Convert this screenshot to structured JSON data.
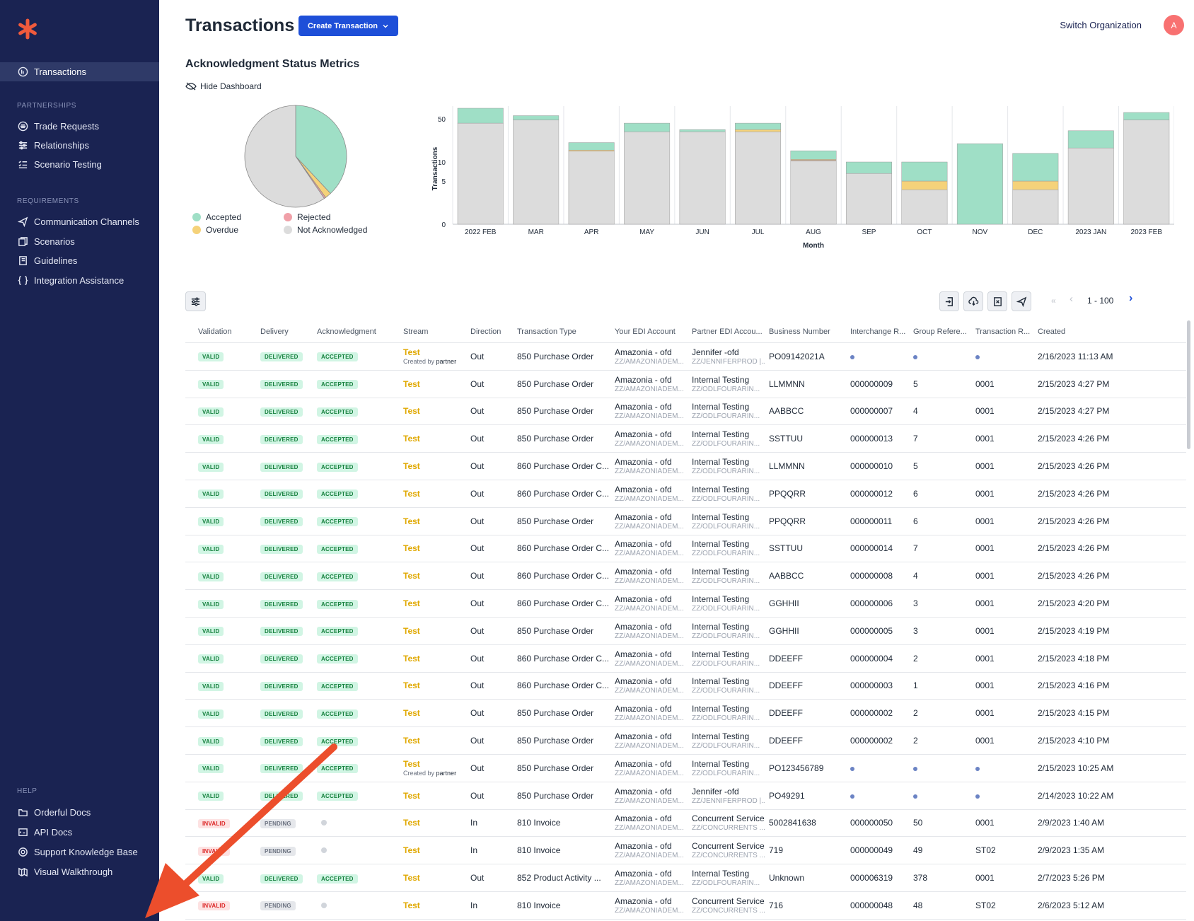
{
  "sidebar": {
    "active": "Transactions",
    "sections": {
      "partnerships": "PARTNERSHIPS",
      "requirements": "REQUIREMENTS",
      "help": "HELP"
    },
    "partnerships": [
      "Trade Requests",
      "Relationships",
      "Scenario Testing"
    ],
    "requirements": [
      "Communication Channels",
      "Scenarios",
      "Guidelines",
      "Integration Assistance"
    ],
    "help": [
      "Orderful Docs",
      "API Docs",
      "Support Knowledge Base",
      "Visual Walkthrough"
    ]
  },
  "header": {
    "title": "Transactions",
    "create_label": "Create Transaction",
    "switch_org": "Switch Organization",
    "avatar": "A"
  },
  "dashboard": {
    "title": "Acknowledgment Status Metrics",
    "hide_label": "Hide Dashboard",
    "legend": {
      "accepted": "Accepted",
      "rejected": "Rejected",
      "overdue": "Overdue",
      "not_ack": "Not Acknowledged"
    }
  },
  "colors": {
    "accepted": "#9fdfc6",
    "rejected": "#f0a0a8",
    "overdue": "#f5d27a",
    "not_ack": "#dcdcdc",
    "accent": "#1e4fd8"
  },
  "chart_data": [
    {
      "type": "pie",
      "slices": [
        {
          "name": "Accepted",
          "value": 38
        },
        {
          "name": "Overdue",
          "value": 2
        },
        {
          "name": "Rejected",
          "value": 0.5
        },
        {
          "name": "Not Acknowledged",
          "value": 59.5
        }
      ]
    },
    {
      "type": "bar",
      "stacked": true,
      "xlabel": "Month",
      "ylabel": "Transactions",
      "yticks": [
        "0",
        "5",
        "10",
        "50"
      ],
      "categories": [
        "2022 FEB",
        "MAR",
        "APR",
        "MAY",
        "JUN",
        "JUL",
        "AUG",
        "SEP",
        "OCT",
        "NOV",
        "DEC",
        "2023 JAN",
        "2023 FEB"
      ],
      "series": [
        {
          "name": "Not Acknowledged",
          "values": [
            46,
            49,
            20,
            38,
            38,
            38,
            11,
            7,
            4,
            0,
            4,
            23,
            49
          ]
        },
        {
          "name": "Rejected",
          "values": [
            0,
            0,
            0,
            0,
            0,
            0,
            0.6,
            0,
            0,
            0,
            0,
            0,
            0
          ]
        },
        {
          "name": "Overdue",
          "values": [
            0,
            0,
            1,
            0,
            0,
            2,
            0.8,
            0,
            1,
            0,
            1,
            0,
            0
          ]
        },
        {
          "name": "Accepted",
          "values": [
            14,
            4,
            7,
            8,
            2,
            6,
            8,
            3,
            5,
            27,
            13,
            16,
            7
          ]
        }
      ]
    }
  ],
  "toolbar": {
    "pager_range": "1 - 100",
    "first": "«",
    "prev": "‹",
    "next": "›"
  },
  "table": {
    "headers": [
      "Validation",
      "Delivery",
      "Acknowledgment",
      "Stream",
      "Direction",
      "Transaction Type",
      "Your EDI Account",
      "Partner EDI Accou...",
      "Business Number",
      "Interchange R...",
      "Group Refere...",
      "Transaction R...",
      "Created"
    ],
    "rows": [
      {
        "val": "VALID",
        "del": "DELIVERED",
        "ack": "ACCEPTED",
        "stream": "Test",
        "created_by": "Created by",
        "created_by_who": "partner",
        "dir": "Out",
        "type": "850 Purchase Order",
        "acct": "Amazonia - ofd",
        "acct2": "ZZ/AMAZONIADEM...",
        "partner": "Jennifer -ofd",
        "partner2": "ZZ/JENNIFERPROD |...",
        "biz": "PO09142021A",
        "ic": "",
        "grp": "",
        "tx": "",
        "created": "2/16/2023 11:13 AM"
      },
      {
        "val": "VALID",
        "del": "DELIVERED",
        "ack": "ACCEPTED",
        "stream": "Test",
        "dir": "Out",
        "type": "850 Purchase Order",
        "acct": "Amazonia - ofd",
        "acct2": "ZZ/AMAZONIADEM...",
        "partner": "Internal Testing",
        "partner2": "ZZ/ODLFOURARIN...",
        "biz": "LLMMNN",
        "ic": "000000009",
        "grp": "5",
        "tx": "0001",
        "created": "2/15/2023 4:27 PM"
      },
      {
        "val": "VALID",
        "del": "DELIVERED",
        "ack": "ACCEPTED",
        "stream": "Test",
        "dir": "Out",
        "type": "850 Purchase Order",
        "acct": "Amazonia - ofd",
        "acct2": "ZZ/AMAZONIADEM...",
        "partner": "Internal Testing",
        "partner2": "ZZ/ODLFOURARIN...",
        "biz": "AABBCC",
        "ic": "000000007",
        "grp": "4",
        "tx": "0001",
        "created": "2/15/2023 4:27 PM"
      },
      {
        "val": "VALID",
        "del": "DELIVERED",
        "ack": "ACCEPTED",
        "stream": "Test",
        "dir": "Out",
        "type": "850 Purchase Order",
        "acct": "Amazonia - ofd",
        "acct2": "ZZ/AMAZONIADEM...",
        "partner": "Internal Testing",
        "partner2": "ZZ/ODLFOURARIN...",
        "biz": "SSTTUU",
        "ic": "000000013",
        "grp": "7",
        "tx": "0001",
        "created": "2/15/2023 4:26 PM"
      },
      {
        "val": "VALID",
        "del": "DELIVERED",
        "ack": "ACCEPTED",
        "stream": "Test",
        "dir": "Out",
        "type": "860 Purchase Order C...",
        "acct": "Amazonia - ofd",
        "acct2": "ZZ/AMAZONIADEM...",
        "partner": "Internal Testing",
        "partner2": "ZZ/ODLFOURARIN...",
        "biz": "LLMMNN",
        "ic": "000000010",
        "grp": "5",
        "tx": "0001",
        "created": "2/15/2023 4:26 PM"
      },
      {
        "val": "VALID",
        "del": "DELIVERED",
        "ack": "ACCEPTED",
        "stream": "Test",
        "dir": "Out",
        "type": "860 Purchase Order C...",
        "acct": "Amazonia - ofd",
        "acct2": "ZZ/AMAZONIADEM...",
        "partner": "Internal Testing",
        "partner2": "ZZ/ODLFOURARIN...",
        "biz": "PPQQRR",
        "ic": "000000012",
        "grp": "6",
        "tx": "0001",
        "created": "2/15/2023 4:26 PM"
      },
      {
        "val": "VALID",
        "del": "DELIVERED",
        "ack": "ACCEPTED",
        "stream": "Test",
        "dir": "Out",
        "type": "850 Purchase Order",
        "acct": "Amazonia - ofd",
        "acct2": "ZZ/AMAZONIADEM...",
        "partner": "Internal Testing",
        "partner2": "ZZ/ODLFOURARIN...",
        "biz": "PPQQRR",
        "ic": "000000011",
        "grp": "6",
        "tx": "0001",
        "created": "2/15/2023 4:26 PM"
      },
      {
        "val": "VALID",
        "del": "DELIVERED",
        "ack": "ACCEPTED",
        "stream": "Test",
        "dir": "Out",
        "type": "860 Purchase Order C...",
        "acct": "Amazonia - ofd",
        "acct2": "ZZ/AMAZONIADEM...",
        "partner": "Internal Testing",
        "partner2": "ZZ/ODLFOURARIN...",
        "biz": "SSTTUU",
        "ic": "000000014",
        "grp": "7",
        "tx": "0001",
        "created": "2/15/2023 4:26 PM"
      },
      {
        "val": "VALID",
        "del": "DELIVERED",
        "ack": "ACCEPTED",
        "stream": "Test",
        "dir": "Out",
        "type": "860 Purchase Order C...",
        "acct": "Amazonia - ofd",
        "acct2": "ZZ/AMAZONIADEM...",
        "partner": "Internal Testing",
        "partner2": "ZZ/ODLFOURARIN...",
        "biz": "AABBCC",
        "ic": "000000008",
        "grp": "4",
        "tx": "0001",
        "created": "2/15/2023 4:26 PM"
      },
      {
        "val": "VALID",
        "del": "DELIVERED",
        "ack": "ACCEPTED",
        "stream": "Test",
        "dir": "Out",
        "type": "860 Purchase Order C...",
        "acct": "Amazonia - ofd",
        "acct2": "ZZ/AMAZONIADEM...",
        "partner": "Internal Testing",
        "partner2": "ZZ/ODLFOURARIN...",
        "biz": "GGHHII",
        "ic": "000000006",
        "grp": "3",
        "tx": "0001",
        "created": "2/15/2023 4:20 PM"
      },
      {
        "val": "VALID",
        "del": "DELIVERED",
        "ack": "ACCEPTED",
        "stream": "Test",
        "dir": "Out",
        "type": "850 Purchase Order",
        "acct": "Amazonia - ofd",
        "acct2": "ZZ/AMAZONIADEM...",
        "partner": "Internal Testing",
        "partner2": "ZZ/ODLFOURARIN...",
        "biz": "GGHHII",
        "ic": "000000005",
        "grp": "3",
        "tx": "0001",
        "created": "2/15/2023 4:19 PM"
      },
      {
        "val": "VALID",
        "del": "DELIVERED",
        "ack": "ACCEPTED",
        "stream": "Test",
        "dir": "Out",
        "type": "860 Purchase Order C...",
        "acct": "Amazonia - ofd",
        "acct2": "ZZ/AMAZONIADEM...",
        "partner": "Internal Testing",
        "partner2": "ZZ/ODLFOURARIN...",
        "biz": "DDEEFF",
        "ic": "000000004",
        "grp": "2",
        "tx": "0001",
        "created": "2/15/2023 4:18 PM"
      },
      {
        "val": "VALID",
        "del": "DELIVERED",
        "ack": "ACCEPTED",
        "stream": "Test",
        "dir": "Out",
        "type": "860 Purchase Order C...",
        "acct": "Amazonia - ofd",
        "acct2": "ZZ/AMAZONIADEM...",
        "partner": "Internal Testing",
        "partner2": "ZZ/ODLFOURARIN...",
        "biz": "DDEEFF",
        "ic": "000000003",
        "grp": "1",
        "tx": "0001",
        "created": "2/15/2023 4:16 PM"
      },
      {
        "val": "VALID",
        "del": "DELIVERED",
        "ack": "ACCEPTED",
        "stream": "Test",
        "dir": "Out",
        "type": "850 Purchase Order",
        "acct": "Amazonia - ofd",
        "acct2": "ZZ/AMAZONIADEM...",
        "partner": "Internal Testing",
        "partner2": "ZZ/ODLFOURARIN...",
        "biz": "DDEEFF",
        "ic": "000000002",
        "grp": "2",
        "tx": "0001",
        "created": "2/15/2023 4:15 PM"
      },
      {
        "val": "VALID",
        "del": "DELIVERED",
        "ack": "ACCEPTED",
        "stream": "Test",
        "dir": "Out",
        "type": "850 Purchase Order",
        "acct": "Amazonia - ofd",
        "acct2": "ZZ/AMAZONIADEM...",
        "partner": "Internal Testing",
        "partner2": "ZZ/ODLFOURARIN...",
        "biz": "DDEEFF",
        "ic": "000000002",
        "grp": "2",
        "tx": "0001",
        "created": "2/15/2023 4:10 PM"
      },
      {
        "val": "VALID",
        "del": "DELIVERED",
        "ack": "ACCEPTED",
        "stream": "Test",
        "created_by": "Created by",
        "created_by_who": "partner",
        "dir": "Out",
        "type": "850 Purchase Order",
        "acct": "Amazonia - ofd",
        "acct2": "ZZ/AMAZONIADEM...",
        "partner": "Internal Testing",
        "partner2": "ZZ/ODLFOURARIN...",
        "biz": "PO123456789",
        "ic": "",
        "grp": "",
        "tx": "",
        "created": "2/15/2023 10:25 AM"
      },
      {
        "val": "VALID",
        "del": "DELIVERED",
        "ack": "ACCEPTED",
        "stream": "Test",
        "dir": "Out",
        "type": "850 Purchase Order",
        "acct": "Amazonia - ofd",
        "acct2": "ZZ/AMAZONIADEM...",
        "partner": "Jennifer -ofd",
        "partner2": "ZZ/JENNIFERPROD |...",
        "biz": "PO49291",
        "ic": "",
        "grp": "",
        "tx": "",
        "created": "2/14/2023 10:22 AM"
      },
      {
        "val": "INVALID",
        "del": "PENDING",
        "ack": "",
        "stream": "Test",
        "dir": "In",
        "type": "810 Invoice",
        "acct": "Amazonia - ofd",
        "acct2": "ZZ/AMAZONIADEM...",
        "partner": "Concurrent Services",
        "partner2": "ZZ/CONCURRENTS ...",
        "biz": "5002841638",
        "ic": "000000050",
        "grp": "50",
        "tx": "0001",
        "created": "2/9/2023 1:40 AM"
      },
      {
        "val": "INVALID",
        "del": "PENDING",
        "ack": "",
        "stream": "Test",
        "dir": "In",
        "type": "810 Invoice",
        "acct": "Amazonia - ofd",
        "acct2": "ZZ/AMAZONIADEM...",
        "partner": "Concurrent Services",
        "partner2": "ZZ/CONCURRENTS ...",
        "biz": "719",
        "ic": "000000049",
        "grp": "49",
        "tx": "ST02",
        "created": "2/9/2023 1:35 AM"
      },
      {
        "val": "VALID",
        "del": "DELIVERED",
        "ack": "ACCEPTED",
        "stream": "Test",
        "dir": "Out",
        "type": "852 Product Activity ...",
        "acct": "Amazonia - ofd",
        "acct2": "ZZ/AMAZONIADEM...",
        "partner": "Internal Testing",
        "partner2": "ZZ/ODLFOURARIN...",
        "biz": "Unknown",
        "ic": "000006319",
        "grp": "378",
        "tx": "0001",
        "created": "2/7/2023 5:26 PM"
      },
      {
        "val": "INVALID",
        "del": "PENDING",
        "ack": "",
        "stream": "Test",
        "dir": "In",
        "type": "810 Invoice",
        "acct": "Amazonia - ofd",
        "acct2": "ZZ/AMAZONIADEM...",
        "partner": "Concurrent Services",
        "partner2": "ZZ/CONCURRENTS ...",
        "biz": "716",
        "ic": "000000048",
        "grp": "48",
        "tx": "ST02",
        "created": "2/6/2023 5:12 AM"
      }
    ]
  }
}
